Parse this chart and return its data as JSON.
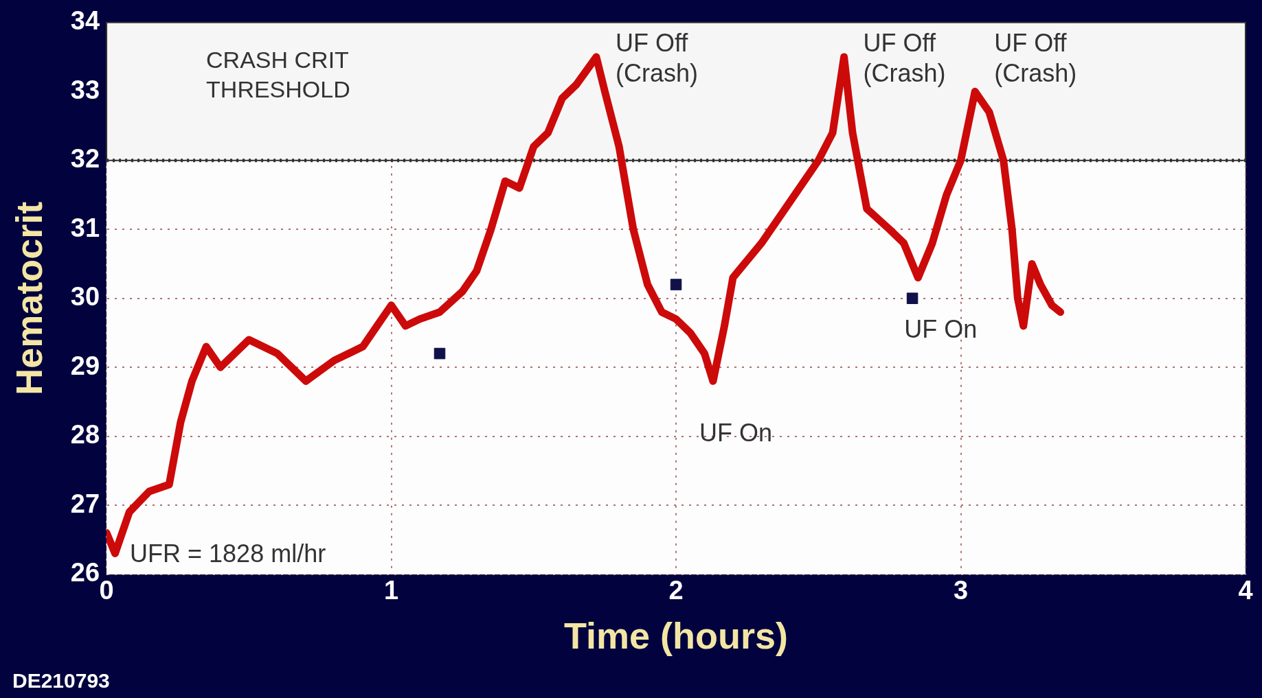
{
  "chart_data": {
    "type": "line",
    "xlabel": "Time (hours)",
    "ylabel": "Hematocrit",
    "xlim": [
      0,
      4
    ],
    "xticks": [
      0,
      1,
      2,
      3,
      4
    ],
    "ylim": [
      26,
      34
    ],
    "yticks": [
      26,
      27,
      28,
      29,
      30,
      31,
      32,
      33,
      34
    ],
    "grid": true,
    "legend": false,
    "series": [
      {
        "color": "#cc0a0a",
        "marker": "none",
        "x": [
          0,
          0.03,
          0.08,
          0.15,
          0.22,
          0.26,
          0.3,
          0.35,
          0.4,
          0.5,
          0.6,
          0.7,
          0.8,
          0.9,
          0.95,
          1.0,
          1.05,
          1.1,
          1.17,
          1.25,
          1.3,
          1.35,
          1.4,
          1.45,
          1.5,
          1.55,
          1.6,
          1.65,
          1.72,
          1.75,
          1.8,
          1.85,
          1.9,
          1.95,
          2.0,
          2.05,
          2.1,
          2.13,
          2.17,
          2.2,
          2.3,
          2.4,
          2.5,
          2.55,
          2.59,
          2.62,
          2.67,
          2.75,
          2.8,
          2.85,
          2.9,
          2.95,
          3.0,
          3.05,
          3.1,
          3.15,
          3.18,
          3.2,
          3.22,
          3.25,
          3.28,
          3.32,
          3.35
        ],
        "values": [
          26.6,
          26.3,
          26.9,
          27.2,
          27.3,
          28.2,
          28.8,
          29.3,
          29.0,
          29.4,
          29.2,
          28.8,
          29.1,
          29.3,
          29.6,
          29.9,
          29.6,
          29.7,
          29.8,
          30.1,
          30.4,
          31.0,
          31.7,
          31.6,
          32.2,
          32.4,
          32.9,
          33.1,
          33.5,
          33.0,
          32.2,
          31.0,
          30.2,
          29.8,
          29.7,
          29.5,
          29.2,
          28.8,
          29.6,
          30.3,
          30.8,
          31.4,
          32.0,
          32.4,
          33.5,
          32.4,
          31.3,
          31.0,
          30.8,
          30.3,
          30.8,
          31.5,
          32.0,
          33.0,
          32.7,
          32.0,
          31.0,
          30.0,
          29.6,
          30.5,
          30.2,
          29.9,
          29.8
        ]
      },
      {
        "type": "scatter",
        "color": "#10104a",
        "marker": "square",
        "x": [
          1.17,
          2.0,
          2.83
        ],
        "values": [
          29.2,
          30.2,
          30.0
        ]
      }
    ],
    "bands": [
      {
        "axis": "y",
        "from": 32,
        "to": 34,
        "label": "CRASH CRIT\nTHRESHOLD",
        "color": "#f6f6f6"
      }
    ],
    "ref_lines": [
      {
        "axis": "y",
        "value": 32,
        "color": "#303030",
        "line_style": "dotted"
      }
    ],
    "annotations": [
      {
        "text": "UF Off\n(Crash)",
        "x": 1.72,
        "y": 33.5
      },
      {
        "text": "UF Off\n(Crash)",
        "x": 2.59,
        "y": 33.5
      },
      {
        "text": "UF Off\n(Crash)",
        "x": 3.05,
        "y": 33.0
      },
      {
        "text": "UF On",
        "x": 2.13,
        "y": 28.8
      },
      {
        "text": "UF On",
        "x": 2.85,
        "y": 30.3
      },
      "UFR = 1828 ml/hr",
      "DE210793"
    ]
  }
}
